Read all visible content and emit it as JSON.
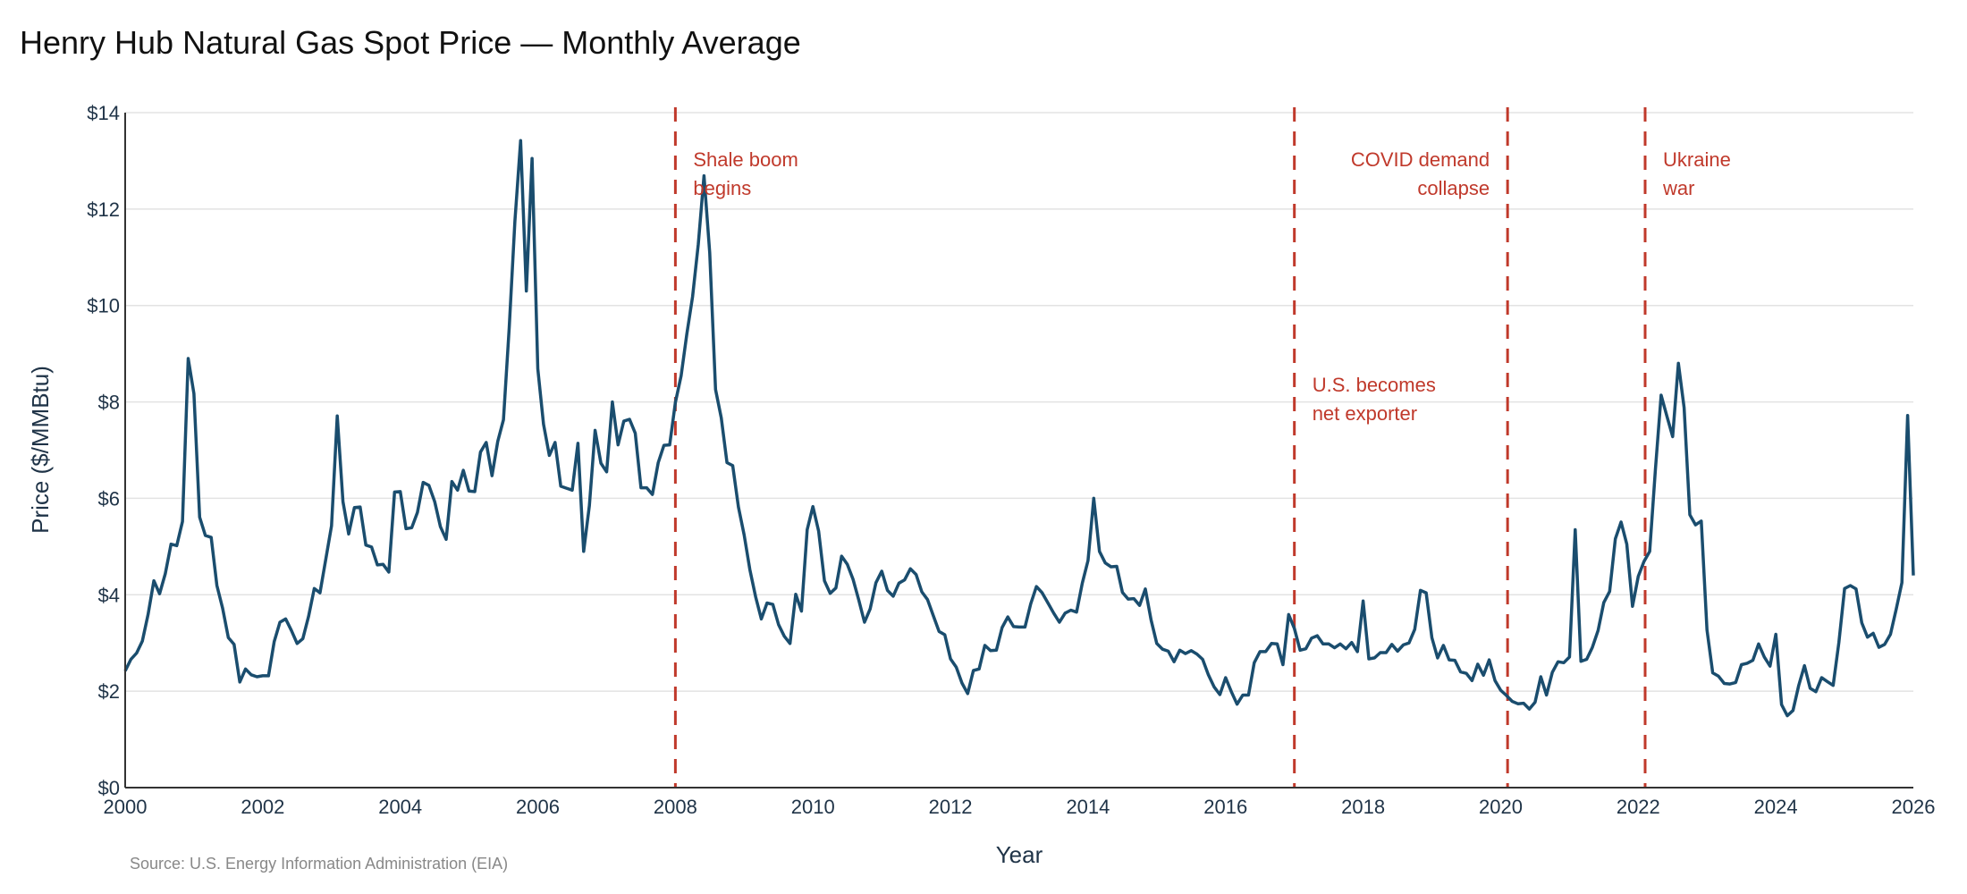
{
  "chart_data": {
    "type": "line",
    "title": "Henry Hub Natural Gas Spot Price — Monthly Average",
    "xlabel": "Year",
    "ylabel": "Price ($/MMBtu)",
    "source": "Source: U.S. Energy Information Administration (EIA)",
    "xlim": [
      2000,
      2026
    ],
    "ylim": [
      0,
      14
    ],
    "x_ticks": [
      2000,
      2002,
      2004,
      2006,
      2008,
      2010,
      2012,
      2014,
      2016,
      2018,
      2020,
      2022,
      2024,
      2026
    ],
    "y_ticks": [
      0,
      2,
      4,
      6,
      8,
      10,
      12,
      14
    ],
    "y_tick_labels": [
      "$0",
      "$2",
      "$4",
      "$6",
      "$8",
      "$10",
      "$12",
      "$14"
    ],
    "grid": "horizontal",
    "start": "2000-01",
    "frequency": "monthly",
    "series": [
      {
        "color": "#1a4d6e",
        "values": [
          2.42,
          2.66,
          2.79,
          3.04,
          3.59,
          4.29,
          4.02,
          4.44,
          5.05,
          5.02,
          5.52,
          8.9,
          8.17,
          5.61,
          5.23,
          5.19,
          4.19,
          3.72,
          3.11,
          2.97,
          2.19,
          2.46,
          2.34,
          2.3,
          2.32,
          2.32,
          3.03,
          3.43,
          3.5,
          3.26,
          2.99,
          3.09,
          3.55,
          4.13,
          4.04,
          4.74,
          5.43,
          7.71,
          5.93,
          5.26,
          5.81,
          5.82,
          5.03,
          4.99,
          4.62,
          4.63,
          4.47,
          6.13,
          6.14,
          5.37,
          5.39,
          5.71,
          6.33,
          6.27,
          5.93,
          5.41,
          5.15,
          6.35,
          6.17,
          6.58,
          6.15,
          6.14,
          6.96,
          7.16,
          6.47,
          7.18,
          7.63,
          9.53,
          11.75,
          13.42,
          10.3,
          13.05,
          8.69,
          7.54,
          6.89,
          7.16,
          6.25,
          6.21,
          6.17,
          7.14,
          4.9,
          5.85,
          7.41,
          6.73,
          6.55,
          8.0,
          7.11,
          7.6,
          7.64,
          7.35,
          6.22,
          6.22,
          6.08,
          6.74,
          7.1,
          7.11,
          7.99,
          8.54,
          9.41,
          10.18,
          11.27,
          12.69,
          11.09,
          8.26,
          7.67,
          6.74,
          6.68,
          5.82,
          5.24,
          4.52,
          3.96,
          3.5,
          3.83,
          3.8,
          3.38,
          3.14,
          2.99,
          4.01,
          3.66,
          5.35,
          5.83,
          5.32,
          4.29,
          4.03,
          4.14,
          4.8,
          4.63,
          4.32,
          3.89,
          3.43,
          3.71,
          4.25,
          4.49,
          4.09,
          3.97,
          4.24,
          4.31,
          4.54,
          4.42,
          4.06,
          3.9,
          3.57,
          3.24,
          3.17,
          2.67,
          2.5,
          2.17,
          1.95,
          2.43,
          2.46,
          2.95,
          2.84,
          2.85,
          3.32,
          3.54,
          3.34,
          3.33,
          3.33,
          3.81,
          4.17,
          4.04,
          3.83,
          3.62,
          3.43,
          3.62,
          3.68,
          3.64,
          4.24,
          4.71,
          6.0,
          4.9,
          4.66,
          4.58,
          4.59,
          4.05,
          3.91,
          3.92,
          3.78,
          4.12,
          3.48,
          2.99,
          2.87,
          2.83,
          2.61,
          2.85,
          2.78,
          2.84,
          2.77,
          2.66,
          2.34,
          2.09,
          1.93,
          2.28,
          1.99,
          1.73,
          1.92,
          1.92,
          2.59,
          2.82,
          2.82,
          2.99,
          2.98,
          2.55,
          3.59,
          3.3,
          2.85,
          2.88,
          3.1,
          3.15,
          2.98,
          2.98,
          2.9,
          2.98,
          2.88,
          3.01,
          2.82,
          3.87,
          2.67,
          2.69,
          2.8,
          2.8,
          2.97,
          2.83,
          2.96,
          3.0,
          3.28,
          4.09,
          4.04,
          3.11,
          2.69,
          2.95,
          2.65,
          2.64,
          2.4,
          2.37,
          2.22,
          2.56,
          2.33,
          2.65,
          2.22,
          2.02,
          1.91,
          1.79,
          1.74,
          1.75,
          1.63,
          1.77,
          2.3,
          1.92,
          2.39,
          2.61,
          2.59,
          2.71,
          5.35,
          2.62,
          2.66,
          2.91,
          3.26,
          3.84,
          4.07,
          5.16,
          5.51,
          5.05,
          3.76,
          4.38,
          4.69,
          4.9,
          6.6,
          8.14,
          7.7,
          7.28,
          8.8,
          7.88,
          5.66,
          5.45,
          5.53,
          3.27,
          2.38,
          2.31,
          2.16,
          2.15,
          2.18,
          2.55,
          2.58,
          2.64,
          2.98,
          2.71,
          2.52,
          3.18,
          1.72,
          1.49,
          1.6,
          2.12,
          2.53,
          2.06,
          1.99,
          2.28,
          2.2,
          2.12,
          3.01,
          4.13,
          4.19,
          4.12,
          3.42,
          3.12,
          3.2,
          2.91,
          2.97,
          3.18,
          3.7,
          4.25,
          7.72,
          4.4
        ]
      }
    ],
    "annotations": [
      {
        "x": 2008.0,
        "lines": [
          "Shale boom",
          "begins"
        ],
        "side": "right",
        "level": "top"
      },
      {
        "x": 2017.0,
        "lines": [
          "U.S. becomes",
          "net exporter"
        ],
        "side": "right",
        "level": "middle"
      },
      {
        "x": 2020.1,
        "lines": [
          "COVID demand",
          "collapse"
        ],
        "side": "left",
        "level": "top"
      },
      {
        "x": 2022.1,
        "lines": [
          "Ukraine",
          "war"
        ],
        "side": "right",
        "level": "top"
      }
    ],
    "annotation_color": "#c0392b"
  }
}
